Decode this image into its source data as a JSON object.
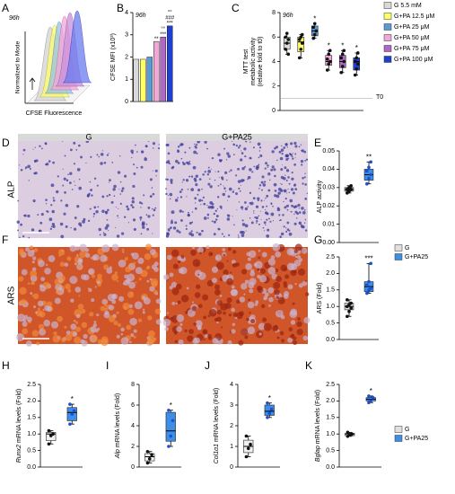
{
  "panel_letters": [
    "A",
    "B",
    "C",
    "D",
    "E",
    "F",
    "G",
    "H",
    "I",
    "J",
    "K"
  ],
  "panel_a": {
    "annotation": "96h",
    "ylabel": "Normalized to Mode",
    "xlabel": "CFSE Fluorescence"
  },
  "legend_top": [
    {
      "name": "G 5.5 mM",
      "color": "#d9d9d9"
    },
    {
      "name": "G+PA 12.5 μM",
      "color": "#ffff66"
    },
    {
      "name": "G+PA 25 μM",
      "color": "#5b9bd5"
    },
    {
      "name": "G+PA 50 μM",
      "color": "#f4a6d7"
    },
    {
      "name": "G+PA 75 μM",
      "color": "#b266c8"
    },
    {
      "name": "G+PA 100 μM",
      "color": "#1f3fd0"
    }
  ],
  "legend_bottom": [
    {
      "name": "G",
      "color": "#e0e0e0"
    },
    {
      "name": "G+PA25",
      "color": "#3d8ee6"
    }
  ],
  "images": {
    "columns": [
      "G",
      "G+PA25"
    ],
    "rows": [
      "ALP",
      "ARS"
    ]
  },
  "chart_data": [
    {
      "type": "bar",
      "annotation": "96h",
      "ylabel": "CFSE MFI (x10³)",
      "ylim": [
        0,
        4
      ],
      "yticks": [
        0,
        1,
        2,
        3,
        4
      ],
      "values": [
        1.9,
        1.9,
        2.0,
        2.7,
        2.9,
        3.4
      ],
      "colors": [
        "#d9d9d9",
        "#ffff66",
        "#5b9bd5",
        "#f4a6d7",
        "#b266c8",
        "#1f3fd0"
      ],
      "stars": [
        [],
        [],
        [],
        [
          "**"
        ],
        [
          "°°",
          "***"
        ],
        [
          "°°",
          "###",
          "***"
        ]
      ]
    },
    {
      "type": "box",
      "annotation": "96h",
      "ylabel": [
        "MTT test",
        "metabolic activity",
        "(relative fold  to t0)"
      ],
      "ylim": [
        0,
        8
      ],
      "yticks": [
        0,
        2,
        4,
        6,
        8
      ],
      "reference": {
        "value": 1,
        "label": "T0"
      },
      "boxes": [
        {
          "color": "#d9d9d9",
          "min": 4.6,
          "q1": 5.0,
          "median": 5.5,
          "q3": 6.0,
          "max": 6.3,
          "points": [
            5.0,
            5.5,
            5.8,
            6.0,
            6.3,
            4.6
          ]
        },
        {
          "color": "#ffff66",
          "min": 4.3,
          "q1": 4.8,
          "median": 5.6,
          "q3": 6.0,
          "max": 6.2,
          "points": [
            4.3,
            5.0,
            5.5,
            5.8,
            6.0,
            6.2
          ]
        },
        {
          "color": "#5b9bd5",
          "min": 5.9,
          "q1": 6.1,
          "median": 6.5,
          "q3": 6.9,
          "max": 7.1,
          "points": [
            5.9,
            6.2,
            6.5,
            6.8,
            7.1
          ],
          "star": "*"
        },
        {
          "color": "#f4a6d7",
          "min": 3.3,
          "q1": 3.7,
          "median": 4.0,
          "q3": 4.5,
          "max": 4.9,
          "points": [
            3.3,
            3.8,
            4.0,
            4.2,
            4.6,
            4.9
          ],
          "star": "*"
        },
        {
          "color": "#b266c8",
          "min": 3.1,
          "q1": 3.5,
          "median": 4.0,
          "q3": 4.5,
          "max": 4.9,
          "points": [
            3.1,
            3.6,
            4.0,
            4.3,
            4.6,
            4.9
          ],
          "star": "*"
        },
        {
          "color": "#1f3fd0",
          "min": 2.9,
          "q1": 3.3,
          "median": 4.0,
          "q3": 4.3,
          "max": 4.7,
          "points": [
            2.9,
            3.4,
            3.8,
            4.0,
            4.3,
            4.7
          ],
          "star": "*"
        }
      ]
    },
    {
      "type": "box",
      "ylabel": "ALP activity",
      "ylim": [
        0,
        0.05
      ],
      "yticks": [
        {
          "value": 0,
          "label": "0.00"
        },
        {
          "value": 0.01,
          "label": "0.01"
        },
        {
          "value": 0.02,
          "label": "0.02"
        },
        {
          "value": 0.03,
          "label": "0.03"
        },
        {
          "value": 0.04,
          "label": "0.04"
        },
        {
          "value": 0.05,
          "label": "0.05"
        }
      ],
      "boxes": [
        {
          "color": "#e0e0e0",
          "min": 0.027,
          "q1": 0.028,
          "median": 0.029,
          "q3": 0.03,
          "max": 0.031,
          "points": [
            0.027,
            0.028,
            0.029,
            0.029,
            0.03,
            0.031
          ]
        },
        {
          "color": "#3d8ee6",
          "min": 0.032,
          "q1": 0.034,
          "median": 0.037,
          "q3": 0.04,
          "max": 0.044,
          "points": [
            0.032,
            0.035,
            0.037,
            0.039,
            0.041,
            0.044
          ],
          "star": "**"
        }
      ]
    },
    {
      "type": "box",
      "ylabel": "ARS (Fold)",
      "ylim": [
        0,
        2.5
      ],
      "yticks": [
        {
          "value": 0,
          "label": "0.0"
        },
        0.5,
        {
          "value": 1,
          "label": "1.0"
        },
        1.5,
        {
          "value": 2,
          "label": "2.0"
        },
        2.5
      ],
      "boxes": [
        {
          "color": "#e0e0e0",
          "min": 0.7,
          "q1": 0.9,
          "median": 1.0,
          "q3": 1.1,
          "max": 1.2,
          "points": [
            0.7,
            0.85,
            0.95,
            1.0,
            1.05,
            1.1,
            1.2
          ]
        },
        {
          "color": "#3d8ee6",
          "min": 1.4,
          "q1": 1.45,
          "median": 1.6,
          "q3": 1.75,
          "max": 2.3,
          "points": [
            1.4,
            1.5,
            1.55,
            1.65,
            1.75,
            2.3
          ],
          "star": "***"
        }
      ]
    },
    {
      "type": "box",
      "ylabel": {
        "gene": "Runx2",
        "text": " mRNA levels (Fold)"
      },
      "ylim": [
        0,
        2.5
      ],
      "yticks": [
        {
          "value": 0,
          "label": "0.0"
        },
        0.5,
        {
          "value": 1,
          "label": "1.0"
        },
        1.5,
        {
          "value": 2,
          "label": "2.0"
        },
        2.5
      ],
      "boxes": [
        {
          "color": "#f0f0f0",
          "min": 0.7,
          "q1": 0.8,
          "median": 1.0,
          "q3": 1.05,
          "max": 1.1,
          "points": [
            0.7,
            0.95,
            1.0,
            1.1
          ]
        },
        {
          "color": "#3d8ee6",
          "min": 1.3,
          "q1": 1.4,
          "median": 1.65,
          "q3": 1.8,
          "max": 1.9,
          "points": [
            1.3,
            1.6,
            1.7,
            1.9
          ],
          "star": "*"
        }
      ]
    },
    {
      "type": "box",
      "ylabel": {
        "gene": "Alp",
        "text": " mRNA levels (Fold)"
      },
      "ylim": [
        0,
        8
      ],
      "yticks": [
        0,
        2,
        4,
        6,
        8
      ],
      "boxes": [
        {
          "color": "#f0f0f0",
          "min": 0.4,
          "q1": 0.6,
          "median": 1.0,
          "q3": 1.3,
          "max": 1.5,
          "points": [
            0.4,
            0.8,
            1.2,
            1.5
          ]
        },
        {
          "color": "#3d8ee6",
          "min": 2.0,
          "q1": 2.5,
          "median": 3.5,
          "q3": 5.3,
          "max": 5.5,
          "points": [
            2.0,
            3.0,
            4.5,
            5.5
          ],
          "star": "*"
        }
      ]
    },
    {
      "type": "box",
      "ylabel": {
        "gene": "Col1α1",
        "text": " mRNA levels (Fold)"
      },
      "ylim": [
        0,
        4
      ],
      "yticks": [
        0,
        1,
        2,
        3,
        4
      ],
      "boxes": [
        {
          "color": "#f0f0f0",
          "min": 0.5,
          "q1": 0.7,
          "median": 1.0,
          "q3": 1.3,
          "max": 1.5,
          "points": [
            0.5,
            0.9,
            1.1,
            1.5
          ]
        },
        {
          "color": "#3d8ee6",
          "min": 2.4,
          "q1": 2.5,
          "median": 2.7,
          "q3": 3.0,
          "max": 3.1,
          "points": [
            2.4,
            2.6,
            2.8,
            3.1
          ],
          "star": "*"
        }
      ]
    },
    {
      "type": "box",
      "ylabel": {
        "gene": "Bglap",
        "text": " mRNA levels (Fold)"
      },
      "ylim": [
        0,
        2.5
      ],
      "yticks": [
        {
          "value": 0,
          "label": "0.0"
        },
        0.5,
        {
          "value": 1,
          "label": "1.0"
        },
        1.5,
        {
          "value": 2,
          "label": "2.0"
        },
        2.5
      ],
      "boxes": [
        {
          "color": "#f0f0f0",
          "min": 0.93,
          "q1": 0.95,
          "median": 1.0,
          "q3": 1.02,
          "max": 1.05,
          "points": [
            0.93,
            0.98,
            1.0,
            1.05
          ]
        },
        {
          "color": "#3d8ee6",
          "min": 1.95,
          "q1": 2.0,
          "median": 2.05,
          "q3": 2.1,
          "max": 2.15,
          "points": [
            1.95,
            2.0,
            2.1,
            2.15
          ],
          "star": "*"
        }
      ]
    }
  ]
}
